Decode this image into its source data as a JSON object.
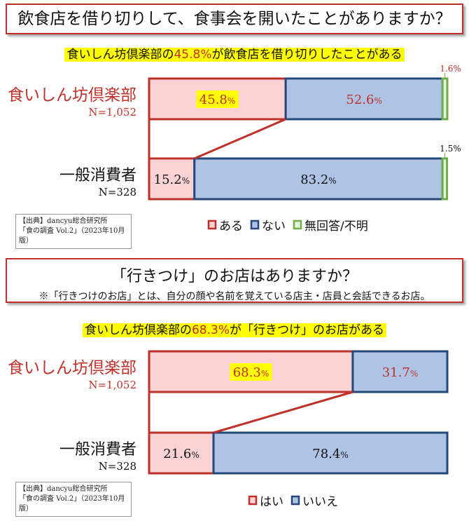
{
  "chart_data": [
    {
      "type": "bar",
      "stacked": true,
      "orientation": "horizontal",
      "title": "飲食店を借り切りして、食事会を開いたことがありますか？",
      "headline": {
        "pre": "食いしん坊倶楽部の",
        "value": "45.8%",
        "post": "が飲食店を借り切りしたことがある"
      },
      "categories": [
        {
          "name": "食いしん坊倶楽部",
          "n": "N=1,052"
        },
        {
          "name": "一般消費者",
          "n": "N=328"
        }
      ],
      "series": [
        {
          "name": "ある",
          "values": [
            45.8,
            15.2
          ],
          "fill": "#f9d3d3",
          "stroke": "#c0302a"
        },
        {
          "name": "ない",
          "values": [
            52.6,
            83.2
          ],
          "fill": "#afc3e4",
          "stroke": "#25477a"
        },
        {
          "name": "無回答/不明",
          "values": [
            1.6,
            1.5
          ],
          "fill": "#e6f2dc",
          "stroke": "#6fae4a"
        }
      ],
      "xlim": [
        0,
        100
      ],
      "source": [
        "【出典】dancyu総合研究所",
        "「食の調査 Vol.2」（2023年10月版）"
      ]
    },
    {
      "type": "bar",
      "stacked": true,
      "orientation": "horizontal",
      "title": "「行きつけ」のお店はありますか？",
      "note": "※「行きつけのお店」とは、自分の顔や名前を覚えている店主・店員と会話できるお店。",
      "headline": {
        "pre": "食いしん坊倶楽部の",
        "value": "68.3%",
        "post": "が「行きつけ」のお店がある"
      },
      "categories": [
        {
          "name": "食いしん坊倶楽部",
          "n": "N=1,052"
        },
        {
          "name": "一般消費者",
          "n": "N=328"
        }
      ],
      "series": [
        {
          "name": "はい",
          "values": [
            68.3,
            21.6
          ],
          "fill": "#f9d3d3",
          "stroke": "#c0302a"
        },
        {
          "name": "いいえ",
          "values": [
            31.7,
            78.4
          ],
          "fill": "#afc3e4",
          "stroke": "#25477a"
        }
      ],
      "xlim": [
        0,
        100
      ],
      "source": [
        "【出典】dancyu総合研究所",
        "「食の調査 Vol.2」（2023年10月版）"
      ]
    }
  ],
  "colors": {
    "accent_red": "#c0302a",
    "highlight": "#ffff00",
    "navy": "#25477a"
  }
}
